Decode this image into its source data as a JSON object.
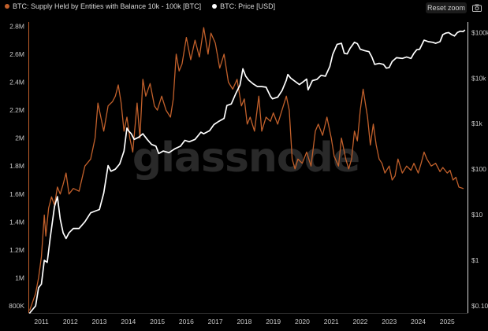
{
  "legend": {
    "supply_label": "BTC: Supply Held by Entities with Balance 10k - 100k [BTC]",
    "price_label": "BTC: Price [USD]"
  },
  "toolbar": {
    "reset_zoom_label": "Reset zoom",
    "camera_icon": "camera-icon"
  },
  "watermark": "glassnode",
  "colors": {
    "supply": "#c2602b",
    "price": "#ffffff",
    "background": "#000000"
  },
  "chart_data": {
    "type": "line",
    "title": "",
    "xlabel": "",
    "x_ticks": [
      "2011",
      "2012",
      "2013",
      "2014",
      "2015",
      "2016",
      "2017",
      "2018",
      "2019",
      "2020",
      "2021",
      "2022",
      "2023",
      "2024",
      "2025"
    ],
    "xlim": [
      2010.55,
      2025.7
    ],
    "left_axis": {
      "ticks": [
        "800K",
        "1M",
        "1.2M",
        "1.4M",
        "1.6M",
        "1.8M",
        "2M",
        "2.2M",
        "2.4M",
        "2.6M",
        "2.8M"
      ],
      "ylim": [
        750000,
        2830000
      ]
    },
    "right_axis": {
      "scale": "log",
      "ticks": [
        "$0.10",
        "$1",
        "$10",
        "$100",
        "$1k",
        "$10k",
        "$100k"
      ],
      "ylim": [
        0.07,
        170000
      ]
    },
    "grid": false,
    "series": [
      {
        "name": "BTC: Supply Held by Entities with Balance 10k - 100k [BTC]",
        "axis": "left",
        "color": "#c2602b",
        "points": [
          [
            2010.6,
            770000
          ],
          [
            2010.7,
            830000
          ],
          [
            2010.8,
            890000
          ],
          [
            2010.9,
            1000000
          ],
          [
            2011.0,
            1150000
          ],
          [
            2011.1,
            1450000
          ],
          [
            2011.15,
            1300000
          ],
          [
            2011.25,
            1500000
          ],
          [
            2011.35,
            1580000
          ],
          [
            2011.45,
            1520000
          ],
          [
            2011.55,
            1650000
          ],
          [
            2011.65,
            1600000
          ],
          [
            2011.75,
            1670000
          ],
          [
            2011.85,
            1750000
          ],
          [
            2011.95,
            1600000
          ],
          [
            2012.1,
            1640000
          ],
          [
            2012.3,
            1620000
          ],
          [
            2012.5,
            1800000
          ],
          [
            2012.7,
            1850000
          ],
          [
            2012.85,
            2000000
          ],
          [
            2012.95,
            2250000
          ],
          [
            2013.05,
            2150000
          ],
          [
            2013.15,
            2050000
          ],
          [
            2013.3,
            2230000
          ],
          [
            2013.45,
            2260000
          ],
          [
            2013.55,
            2300000
          ],
          [
            2013.65,
            2380000
          ],
          [
            2013.75,
            2250000
          ],
          [
            2013.85,
            2050000
          ],
          [
            2013.95,
            2150000
          ],
          [
            2014.05,
            2000000
          ],
          [
            2014.15,
            1900000
          ],
          [
            2014.3,
            2250000
          ],
          [
            2014.4,
            2000000
          ],
          [
            2014.5,
            2420000
          ],
          [
            2014.6,
            2300000
          ],
          [
            2014.75,
            2390000
          ],
          [
            2014.9,
            2230000
          ],
          [
            2015.0,
            2200000
          ],
          [
            2015.15,
            2300000
          ],
          [
            2015.3,
            2200000
          ],
          [
            2015.45,
            2150000
          ],
          [
            2015.55,
            2280000
          ],
          [
            2015.65,
            2600000
          ],
          [
            2015.75,
            2480000
          ],
          [
            2015.85,
            2530000
          ],
          [
            2016.0,
            2720000
          ],
          [
            2016.15,
            2560000
          ],
          [
            2016.3,
            2700000
          ],
          [
            2016.45,
            2580000
          ],
          [
            2016.6,
            2790000
          ],
          [
            2016.75,
            2600000
          ],
          [
            2016.85,
            2750000
          ],
          [
            2017.0,
            2680000
          ],
          [
            2017.15,
            2500000
          ],
          [
            2017.3,
            2600000
          ],
          [
            2017.45,
            2400000
          ],
          [
            2017.6,
            2350000
          ],
          [
            2017.75,
            2420000
          ],
          [
            2017.9,
            2230000
          ],
          [
            2018.0,
            2280000
          ],
          [
            2018.1,
            2100000
          ],
          [
            2018.2,
            2150000
          ],
          [
            2018.35,
            2050000
          ],
          [
            2018.5,
            2300000
          ],
          [
            2018.6,
            2050000
          ],
          [
            2018.75,
            2150000
          ],
          [
            2018.9,
            2120000
          ],
          [
            2019.0,
            2180000
          ],
          [
            2019.15,
            2100000
          ],
          [
            2019.3,
            2200000
          ],
          [
            2019.45,
            2300000
          ],
          [
            2019.55,
            2200000
          ],
          [
            2019.65,
            1850000
          ],
          [
            2019.75,
            1780000
          ],
          [
            2019.85,
            1850000
          ],
          [
            2020.0,
            1820000
          ],
          [
            2020.15,
            1900000
          ],
          [
            2020.3,
            1800000
          ],
          [
            2020.45,
            2050000
          ],
          [
            2020.55,
            2100000
          ],
          [
            2020.7,
            2020000
          ],
          [
            2020.85,
            2150000
          ],
          [
            2021.0,
            2000000
          ],
          [
            2021.1,
            1870000
          ],
          [
            2021.25,
            1800000
          ],
          [
            2021.35,
            2000000
          ],
          [
            2021.5,
            1850000
          ],
          [
            2021.6,
            1780000
          ],
          [
            2021.7,
            1850000
          ],
          [
            2021.8,
            2050000
          ],
          [
            2021.9,
            1980000
          ],
          [
            2022.0,
            2200000
          ],
          [
            2022.1,
            2350000
          ],
          [
            2022.25,
            2150000
          ],
          [
            2022.35,
            1950000
          ],
          [
            2022.45,
            2100000
          ],
          [
            2022.55,
            1950000
          ],
          [
            2022.65,
            1850000
          ],
          [
            2022.75,
            1820000
          ],
          [
            2022.85,
            1750000
          ],
          [
            2023.0,
            1800000
          ],
          [
            2023.1,
            1700000
          ],
          [
            2023.2,
            1730000
          ],
          [
            2023.3,
            1850000
          ],
          [
            2023.45,
            1750000
          ],
          [
            2023.6,
            1800000
          ],
          [
            2023.75,
            1770000
          ],
          [
            2023.85,
            1820000
          ],
          [
            2024.0,
            1750000
          ],
          [
            2024.1,
            1820000
          ],
          [
            2024.2,
            1900000
          ],
          [
            2024.3,
            1850000
          ],
          [
            2024.45,
            1800000
          ],
          [
            2024.6,
            1820000
          ],
          [
            2024.75,
            1760000
          ],
          [
            2024.85,
            1790000
          ],
          [
            2025.0,
            1750000
          ],
          [
            2025.1,
            1770000
          ],
          [
            2025.2,
            1700000
          ],
          [
            2025.3,
            1720000
          ],
          [
            2025.4,
            1650000
          ],
          [
            2025.55,
            1640000
          ]
        ]
      },
      {
        "name": "BTC: Price [USD]",
        "axis": "right",
        "color": "#ffffff",
        "points": [
          [
            2010.6,
            0.07
          ],
          [
            2010.8,
            0.1
          ],
          [
            2010.9,
            0.25
          ],
          [
            2011.0,
            0.3
          ],
          [
            2011.1,
            1
          ],
          [
            2011.2,
            0.9
          ],
          [
            2011.3,
            3
          ],
          [
            2011.45,
            15
          ],
          [
            2011.55,
            25
          ],
          [
            2011.65,
            8
          ],
          [
            2011.75,
            4
          ],
          [
            2011.85,
            3
          ],
          [
            2011.95,
            4
          ],
          [
            2012.1,
            5
          ],
          [
            2012.3,
            5
          ],
          [
            2012.5,
            7
          ],
          [
            2012.7,
            11
          ],
          [
            2012.85,
            12
          ],
          [
            2013.0,
            13
          ],
          [
            2013.15,
            30
          ],
          [
            2013.3,
            120
          ],
          [
            2013.4,
            90
          ],
          [
            2013.55,
            100
          ],
          [
            2013.7,
            130
          ],
          [
            2013.85,
            250
          ],
          [
            2013.95,
            800
          ],
          [
            2014.0,
            700
          ],
          [
            2014.1,
            600
          ],
          [
            2014.2,
            450
          ],
          [
            2014.35,
            500
          ],
          [
            2014.5,
            600
          ],
          [
            2014.65,
            450
          ],
          [
            2014.8,
            350
          ],
          [
            2014.95,
            320
          ],
          [
            2015.05,
            220
          ],
          [
            2015.2,
            250
          ],
          [
            2015.4,
            230
          ],
          [
            2015.6,
            280
          ],
          [
            2015.8,
            320
          ],
          [
            2015.95,
            430
          ],
          [
            2016.1,
            400
          ],
          [
            2016.3,
            450
          ],
          [
            2016.5,
            650
          ],
          [
            2016.6,
            600
          ],
          [
            2016.8,
            700
          ],
          [
            2016.95,
            950
          ],
          [
            2017.1,
            1100
          ],
          [
            2017.3,
            1300
          ],
          [
            2017.4,
            2500
          ],
          [
            2017.55,
            2700
          ],
          [
            2017.7,
            4500
          ],
          [
            2017.85,
            7000
          ],
          [
            2017.95,
            16000
          ],
          [
            2018.05,
            11000
          ],
          [
            2018.15,
            9000
          ],
          [
            2018.3,
            7500
          ],
          [
            2018.45,
            6500
          ],
          [
            2018.6,
            6500
          ],
          [
            2018.75,
            6300
          ],
          [
            2018.9,
            4000
          ],
          [
            2018.97,
            3500
          ],
          [
            2019.15,
            3800
          ],
          [
            2019.3,
            5300
          ],
          [
            2019.45,
            9000
          ],
          [
            2019.5,
            12000
          ],
          [
            2019.6,
            10000
          ],
          [
            2019.75,
            8500
          ],
          [
            2019.9,
            7200
          ],
          [
            2020.0,
            8000
          ],
          [
            2020.15,
            9500
          ],
          [
            2020.2,
            5500
          ],
          [
            2020.35,
            8800
          ],
          [
            2020.5,
            9300
          ],
          [
            2020.65,
            11500
          ],
          [
            2020.8,
            11000
          ],
          [
            2020.95,
            18000
          ],
          [
            2021.05,
            33000
          ],
          [
            2021.2,
            55000
          ],
          [
            2021.35,
            58000
          ],
          [
            2021.45,
            35000
          ],
          [
            2021.55,
            34000
          ],
          [
            2021.65,
            45000
          ],
          [
            2021.8,
            61000
          ],
          [
            2021.9,
            57000
          ],
          [
            2022.0,
            43000
          ],
          [
            2022.15,
            40000
          ],
          [
            2022.3,
            38000
          ],
          [
            2022.4,
            29000
          ],
          [
            2022.5,
            20000
          ],
          [
            2022.65,
            21000
          ],
          [
            2022.8,
            20000
          ],
          [
            2022.9,
            16500
          ],
          [
            2023.0,
            17000
          ],
          [
            2023.1,
            23000
          ],
          [
            2023.25,
            28000
          ],
          [
            2023.45,
            27000
          ],
          [
            2023.6,
            29000
          ],
          [
            2023.75,
            27000
          ],
          [
            2023.85,
            35000
          ],
          [
            2023.95,
            42000
          ],
          [
            2024.05,
            43000
          ],
          [
            2024.2,
            68000
          ],
          [
            2024.35,
            63000
          ],
          [
            2024.5,
            61000
          ],
          [
            2024.6,
            58000
          ],
          [
            2024.75,
            63000
          ],
          [
            2024.85,
            90000
          ],
          [
            2024.95,
            97000
          ],
          [
            2025.05,
            100000
          ],
          [
            2025.15,
            90000
          ],
          [
            2025.25,
            84000
          ],
          [
            2025.35,
            100000
          ],
          [
            2025.45,
            107000
          ],
          [
            2025.55,
            105000
          ],
          [
            2025.6,
            112000
          ]
        ]
      }
    ]
  }
}
